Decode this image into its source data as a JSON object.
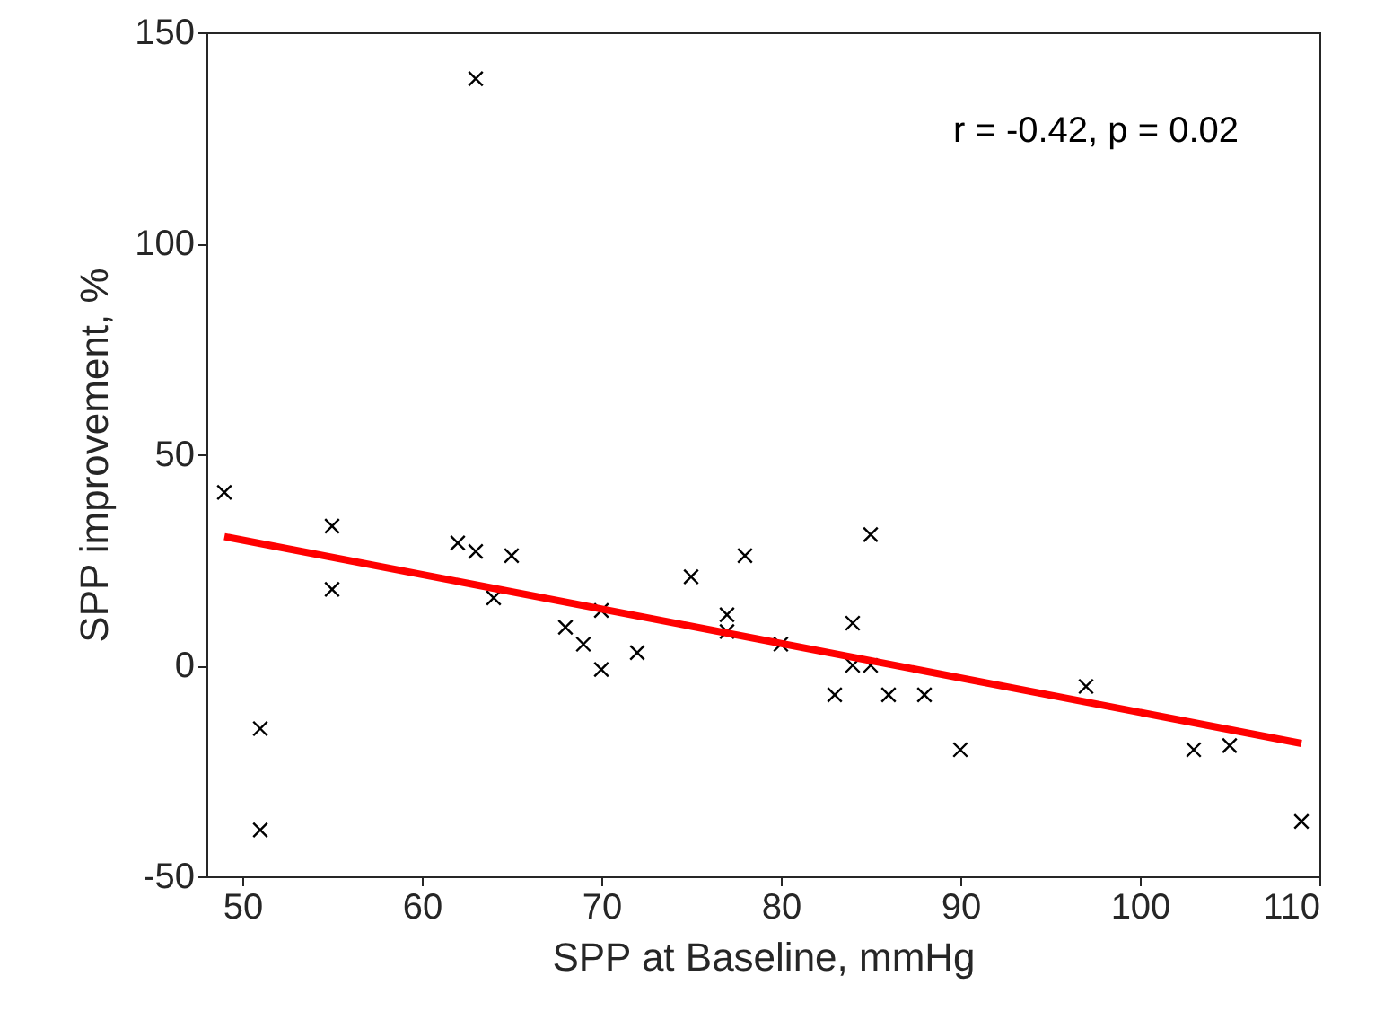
{
  "chart_data": {
    "type": "scatter",
    "xlabel": "SPP at Baseline, mmHg",
    "ylabel": "SPP improvement, %",
    "annotations": [
      "r = -0.42, p = 0.02"
    ],
    "xlim": [
      48,
      110
    ],
    "ylim": [
      -50,
      150
    ],
    "xticks": [
      50,
      60,
      70,
      80,
      90,
      100,
      110
    ],
    "yticks": [
      -50,
      0,
      50,
      100,
      150
    ],
    "grid": false,
    "marker": "cross",
    "series": [
      {
        "color": "#000000",
        "x": [
          49,
          51,
          51,
          55,
          55,
          62,
          63,
          63,
          64,
          65,
          68,
          69,
          70,
          70,
          72,
          75,
          77,
          77,
          78,
          80,
          83,
          84,
          84,
          85,
          85,
          86,
          88,
          90,
          97,
          103,
          105,
          109
        ],
        "values": [
          41,
          -15,
          -39,
          33,
          18,
          29,
          27,
          139,
          16,
          26,
          9,
          5,
          13,
          -1,
          3,
          21,
          12,
          8,
          26,
          5,
          -7,
          10,
          0,
          31,
          0,
          -7,
          -7,
          -20,
          -5,
          -20,
          -19,
          -37
        ]
      },
      {
        "type": "line",
        "color": "#ff0000",
        "x": [
          49,
          109
        ],
        "values": [
          30.5,
          -18.5
        ],
        "marker": "none",
        "line_style": "solid"
      }
    ]
  }
}
